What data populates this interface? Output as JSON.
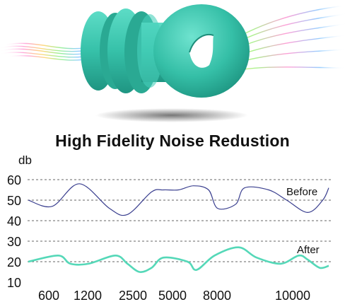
{
  "colors": {
    "earplug": "#3dc4ae",
    "earplug_dark": "#1f9a86",
    "before_line": "#3a3f8f",
    "after_line": "#55d8b8",
    "grid": "#666666",
    "text": "#111111"
  },
  "hero": {
    "image": "earplug-product-photo",
    "decoration": "rainbow-sound-wave-streaks"
  },
  "chart_data": {
    "type": "line",
    "title": "High Fidelity Noise Redustion",
    "ylabel": "db",
    "ylim": [
      10,
      60
    ],
    "yticks": [
      60,
      50,
      40,
      30,
      20,
      10
    ],
    "grid_values": [
      60,
      50,
      40,
      30,
      20
    ],
    "grid": true,
    "x_tick_labels": [
      "600",
      "1200",
      "2500",
      "5000",
      "8000",
      "10000"
    ],
    "series": [
      {
        "name": "Before",
        "color": "#3a3f8f",
        "x": [
          0,
          0.08,
          0.17,
          0.27,
          0.33,
          0.41,
          0.45,
          0.5,
          0.55,
          0.6,
          0.63,
          0.69,
          0.72,
          0.8,
          0.86,
          0.93,
          0.98,
          1.0
        ],
        "values": [
          50,
          47,
          58,
          46,
          43,
          54,
          55,
          55,
          57,
          55,
          46,
          48,
          56,
          55,
          50,
          44,
          50,
          56
        ]
      },
      {
        "name": "After",
        "color": "#55d8b8",
        "x": [
          0,
          0.1,
          0.14,
          0.2,
          0.29,
          0.33,
          0.37,
          0.41,
          0.45,
          0.53,
          0.56,
          0.62,
          0.7,
          0.76,
          0.84,
          0.9,
          0.93,
          0.97,
          1.0
        ],
        "values": [
          20,
          23,
          19,
          19,
          23,
          19,
          15,
          17,
          22,
          20,
          16,
          23,
          27,
          22,
          19,
          23,
          21,
          17,
          18
        ]
      }
    ]
  }
}
